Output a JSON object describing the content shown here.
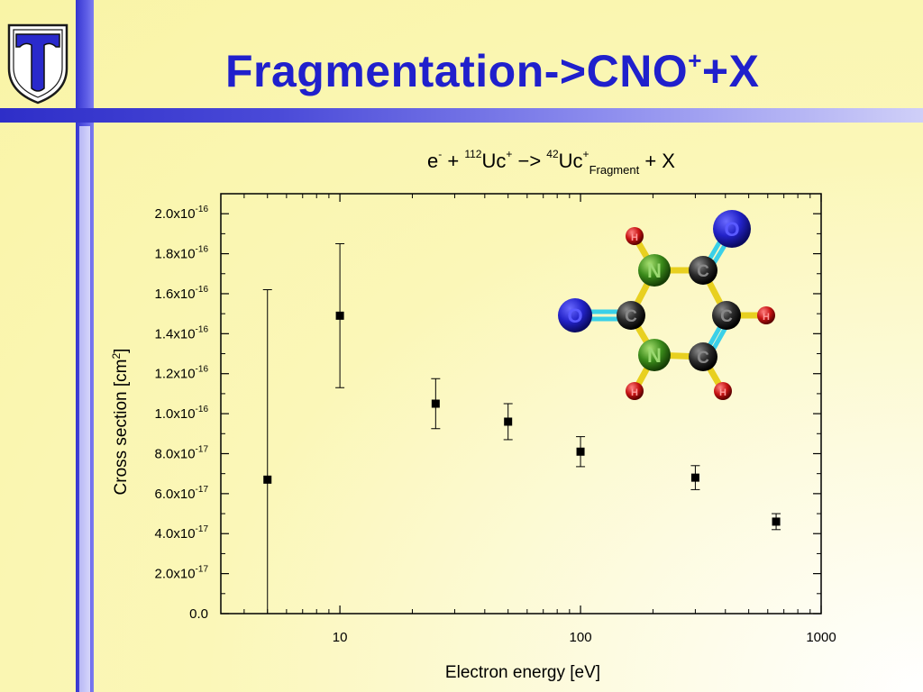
{
  "title": {
    "main": "Fragmentation->CNO",
    "sup": "+",
    "tail": "+X"
  },
  "reaction": {
    "electron": "e",
    "electron_sup": "-",
    "plus1": " + ",
    "mass_in": "112",
    "species_in": "Uc",
    "charge_in": "+",
    "arrow": " −> ",
    "mass_out": "42",
    "species_out": "Uc",
    "charge_out": "+",
    "fragment": "Fragment",
    "tail": " + X"
  },
  "colors": {
    "title": "#2020cc",
    "bar": "#3a3ad6",
    "oxygen": "#2525c8",
    "nitrogen": "#3a8a1a",
    "carbon": "#222222",
    "hydrogen": "#c81414"
  },
  "logo_icon": "shield-t-logo",
  "chart_data": {
    "type": "scatter",
    "xlabel": "Electron energy [eV]",
    "ylabel": "Cross section [cm",
    "ylabel_sup": "2",
    "ylabel_end": "]",
    "xscale": "log",
    "xlim": [
      3.2,
      1000
    ],
    "ylim": [
      0,
      2.1e-16
    ],
    "grid": false,
    "marker": "square",
    "x_ticks": [
      {
        "value": 10,
        "label": "10"
      },
      {
        "value": 100,
        "label": "100"
      },
      {
        "value": 1000,
        "label": "1000"
      }
    ],
    "y_ticks": [
      {
        "value": 0,
        "label": "0.0",
        "exp": ""
      },
      {
        "value": 2e-17,
        "label": "2.0x10",
        "exp": "-17"
      },
      {
        "value": 4e-17,
        "label": "4.0x10",
        "exp": "-17"
      },
      {
        "value": 6e-17,
        "label": "6.0x10",
        "exp": "-17"
      },
      {
        "value": 8e-17,
        "label": "8.0x10",
        "exp": "-17"
      },
      {
        "value": 1e-16,
        "label": "1.0x10",
        "exp": "-16"
      },
      {
        "value": 1.2e-16,
        "label": "1.2x10",
        "exp": "-16"
      },
      {
        "value": 1.4e-16,
        "label": "1.4x10",
        "exp": "-16"
      },
      {
        "value": 1.6e-16,
        "label": "1.6x10",
        "exp": "-16"
      },
      {
        "value": 1.8e-16,
        "label": "1.8x10",
        "exp": "-16"
      },
      {
        "value": 2e-16,
        "label": "2.0x10",
        "exp": "-16"
      }
    ],
    "points": [
      {
        "x": 5,
        "y": 6.7e-17,
        "err_low": 6.7e-17,
        "err_high": 9.5e-17
      },
      {
        "x": 10,
        "y": 1.49e-16,
        "err_low": 3.6e-17,
        "err_high": 3.6e-17
      },
      {
        "x": 25,
        "y": 1.05e-16,
        "err_low": 1.25e-17,
        "err_high": 1.25e-17
      },
      {
        "x": 50,
        "y": 9.6e-17,
        "err_low": 9e-18,
        "err_high": 9e-18
      },
      {
        "x": 100,
        "y": 8.1e-17,
        "err_low": 7.5e-18,
        "err_high": 7.5e-18
      },
      {
        "x": 300,
        "y": 6.8e-17,
        "err_low": 6e-18,
        "err_high": 6e-18
      },
      {
        "x": 650,
        "y": 4.6e-17,
        "err_low": 4e-18,
        "err_high": 4e-18
      }
    ]
  },
  "molecule": {
    "atoms": [
      {
        "label": "O",
        "kind": "oxygen"
      },
      {
        "label": "O",
        "kind": "oxygen"
      },
      {
        "label": "N",
        "kind": "nitrogen"
      },
      {
        "label": "N",
        "kind": "nitrogen"
      },
      {
        "label": "C",
        "kind": "carbon"
      },
      {
        "label": "C",
        "kind": "carbon"
      },
      {
        "label": "C",
        "kind": "carbon"
      },
      {
        "label": "C",
        "kind": "carbon"
      },
      {
        "label": "H",
        "kind": "hydrogen"
      },
      {
        "label": "H",
        "kind": "hydrogen"
      },
      {
        "label": "H",
        "kind": "hydrogen"
      },
      {
        "label": "H",
        "kind": "hydrogen"
      }
    ]
  }
}
